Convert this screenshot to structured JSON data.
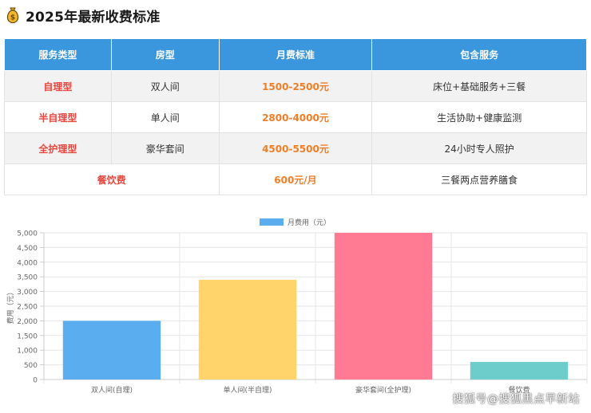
{
  "header": {
    "title": "2025年最新收费标准",
    "icon": "money-bag-icon"
  },
  "table": {
    "headers": [
      "服务类型",
      "房型",
      "月费标准",
      "包含服务"
    ],
    "rows": [
      {
        "type": "自理型",
        "room": "双人间",
        "fee": "1500-2500元",
        "services": "床位+基础服务+三餐"
      },
      {
        "type": "半自理型",
        "room": "单人间",
        "fee": "2800-4000元",
        "services": "生活协助+健康监测"
      },
      {
        "type": "全护理型",
        "room": "豪华套间",
        "fee": "4500-5500元",
        "services": "24小时专人照护"
      }
    ],
    "meal": {
      "type": "餐饮费",
      "fee": "600元/月",
      "services": "三餐两点营养膳食"
    }
  },
  "colors": {
    "header_bg": "#3a96dd",
    "type_text": "#e8473f",
    "fee_text": "#f07e26"
  },
  "chart_data": {
    "type": "bar",
    "categories": [
      "双人间(自理)",
      "单人间(半自理)",
      "豪华套间(全护理)",
      "餐饮费"
    ],
    "series": [
      {
        "name": "月费用（元）",
        "values": [
          2000,
          3400,
          5000,
          600
        ]
      }
    ],
    "bar_colors": [
      "#5aaef0",
      "#ffd46a",
      "#ff7a92",
      "#6dcdcb"
    ],
    "xlabel": "",
    "ylabel": "费用（元）",
    "ylim": [
      0,
      5000
    ],
    "yticks": [
      "0",
      "500",
      "1,000",
      "1,500",
      "2,000",
      "2,500",
      "3,000",
      "3,500",
      "4,000",
      "4,500",
      "5,000"
    ],
    "grid": true,
    "legend": "top-center"
  },
  "watermark": "搜狐号@搜狐黑点早新站"
}
